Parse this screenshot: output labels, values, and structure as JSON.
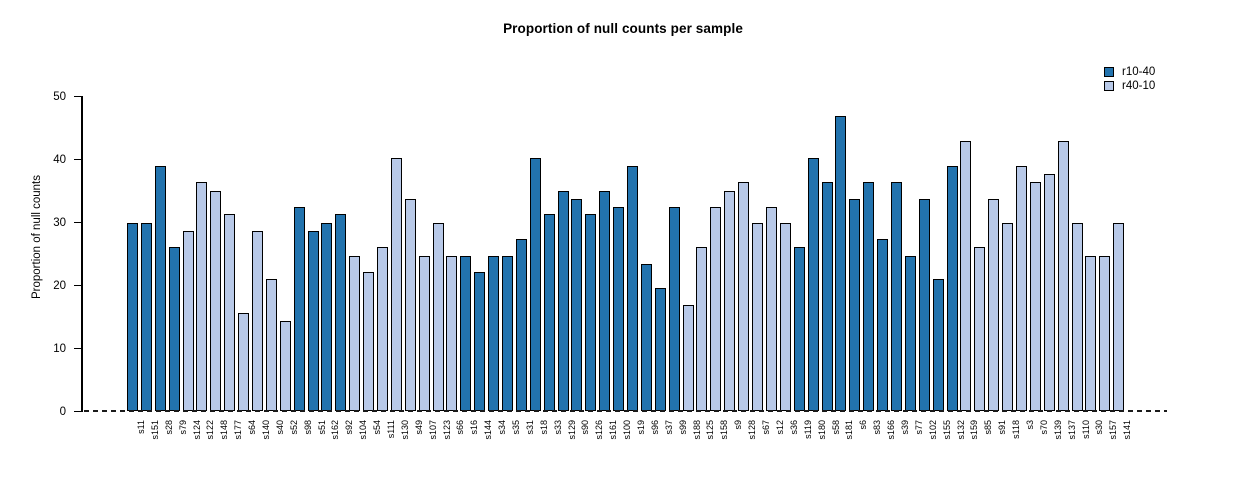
{
  "chart_data": {
    "type": "bar",
    "title": "Proportion of null counts per sample",
    "xlabel": "",
    "ylabel": "Proportion of null counts",
    "ylim": [
      0,
      50
    ],
    "yticks": [
      0,
      10,
      20,
      30,
      40,
      50
    ],
    "grid": false,
    "legend_position": "top-right",
    "baseline_style": "dashed",
    "series": [
      {
        "name": "r10-40",
        "color": "#2273ae"
      },
      {
        "name": "r40-10",
        "color": "#b8c9e8"
      }
    ],
    "bar_border_color": "#000000",
    "bars": [
      {
        "label": "s11",
        "series": "r10-40",
        "value": 29.9
      },
      {
        "label": "s151",
        "series": "r10-40",
        "value": 29.9
      },
      {
        "label": "s28",
        "series": "r10-40",
        "value": 38.9
      },
      {
        "label": "s79",
        "series": "r10-40",
        "value": 26.0
      },
      {
        "label": "s124",
        "series": "r40-10",
        "value": 28.5
      },
      {
        "label": "s122",
        "series": "r40-10",
        "value": 36.4
      },
      {
        "label": "s148",
        "series": "r40-10",
        "value": 35.0
      },
      {
        "label": "s177",
        "series": "r40-10",
        "value": 31.2
      },
      {
        "label": "s64",
        "series": "r40-10",
        "value": 15.6
      },
      {
        "label": "s140",
        "series": "r40-10",
        "value": 28.5
      },
      {
        "label": "s40",
        "series": "r40-10",
        "value": 20.9
      },
      {
        "label": "s52",
        "series": "r40-10",
        "value": 14.3
      },
      {
        "label": "s98",
        "series": "r10-40",
        "value": 32.4
      },
      {
        "label": "s51",
        "series": "r10-40",
        "value": 28.5
      },
      {
        "label": "s162",
        "series": "r10-40",
        "value": 29.9
      },
      {
        "label": "s92",
        "series": "r10-40",
        "value": 31.2
      },
      {
        "label": "s104",
        "series": "r40-10",
        "value": 24.6
      },
      {
        "label": "s54",
        "series": "r40-10",
        "value": 22.1
      },
      {
        "label": "s111",
        "series": "r40-10",
        "value": 26.0
      },
      {
        "label": "s130",
        "series": "r40-10",
        "value": 40.1
      },
      {
        "label": "s49",
        "series": "r40-10",
        "value": 33.7
      },
      {
        "label": "s107",
        "series": "r40-10",
        "value": 24.6
      },
      {
        "label": "s123",
        "series": "r40-10",
        "value": 29.9
      },
      {
        "label": "s66",
        "series": "r40-10",
        "value": 24.6
      },
      {
        "label": "s16",
        "series": "r10-40",
        "value": 24.6
      },
      {
        "label": "s144",
        "series": "r10-40",
        "value": 22.1
      },
      {
        "label": "s34",
        "series": "r10-40",
        "value": 24.6
      },
      {
        "label": "s35",
        "series": "r10-40",
        "value": 24.6
      },
      {
        "label": "s31",
        "series": "r10-40",
        "value": 27.3
      },
      {
        "label": "s18",
        "series": "r10-40",
        "value": 40.1
      },
      {
        "label": "s33",
        "series": "r10-40",
        "value": 31.2
      },
      {
        "label": "s129",
        "series": "r10-40",
        "value": 35.0
      },
      {
        "label": "s90",
        "series": "r10-40",
        "value": 33.7
      },
      {
        "label": "s126",
        "series": "r10-40",
        "value": 31.2
      },
      {
        "label": "s161",
        "series": "r10-40",
        "value": 35.0
      },
      {
        "label": "s100",
        "series": "r10-40",
        "value": 32.4
      },
      {
        "label": "s19",
        "series": "r10-40",
        "value": 38.9
      },
      {
        "label": "s96",
        "series": "r10-40",
        "value": 23.3
      },
      {
        "label": "s37",
        "series": "r10-40",
        "value": 19.5
      },
      {
        "label": "s99",
        "series": "r10-40",
        "value": 32.4
      },
      {
        "label": "s188",
        "series": "r40-10",
        "value": 16.8
      },
      {
        "label": "s125",
        "series": "r40-10",
        "value": 26.0
      },
      {
        "label": "s158",
        "series": "r40-10",
        "value": 32.4
      },
      {
        "label": "s9",
        "series": "r40-10",
        "value": 35.0
      },
      {
        "label": "s128",
        "series": "r40-10",
        "value": 36.4
      },
      {
        "label": "s67",
        "series": "r40-10",
        "value": 29.9
      },
      {
        "label": "s12",
        "series": "r40-10",
        "value": 32.4
      },
      {
        "label": "s36",
        "series": "r40-10",
        "value": 29.9
      },
      {
        "label": "s119",
        "series": "r10-40",
        "value": 26.0
      },
      {
        "label": "s180",
        "series": "r10-40",
        "value": 40.1
      },
      {
        "label": "s58",
        "series": "r10-40",
        "value": 36.4
      },
      {
        "label": "s181",
        "series": "r10-40",
        "value": 46.8
      },
      {
        "label": "s6",
        "series": "r10-40",
        "value": 33.7
      },
      {
        "label": "s83",
        "series": "r10-40",
        "value": 36.4
      },
      {
        "label": "s166",
        "series": "r10-40",
        "value": 27.3
      },
      {
        "label": "s39",
        "series": "r10-40",
        "value": 36.4
      },
      {
        "label": "s77",
        "series": "r10-40",
        "value": 24.6
      },
      {
        "label": "s102",
        "series": "r10-40",
        "value": 33.7
      },
      {
        "label": "s155",
        "series": "r10-40",
        "value": 20.9
      },
      {
        "label": "s132",
        "series": "r10-40",
        "value": 38.9
      },
      {
        "label": "s159",
        "series": "r40-10",
        "value": 42.8
      },
      {
        "label": "s85",
        "series": "r40-10",
        "value": 26.0
      },
      {
        "label": "s91",
        "series": "r40-10",
        "value": 33.7
      },
      {
        "label": "s118",
        "series": "r40-10",
        "value": 29.9
      },
      {
        "label": "s3",
        "series": "r40-10",
        "value": 38.9
      },
      {
        "label": "s70",
        "series": "r40-10",
        "value": 36.4
      },
      {
        "label": "s139",
        "series": "r40-10",
        "value": 37.6
      },
      {
        "label": "s137",
        "series": "r40-10",
        "value": 42.8
      },
      {
        "label": "s110",
        "series": "r40-10",
        "value": 29.9
      },
      {
        "label": "s30",
        "series": "r40-10",
        "value": 24.6
      },
      {
        "label": "s157",
        "series": "r40-10",
        "value": 24.6
      },
      {
        "label": "s141",
        "series": "r40-10",
        "value": 29.9
      }
    ]
  }
}
